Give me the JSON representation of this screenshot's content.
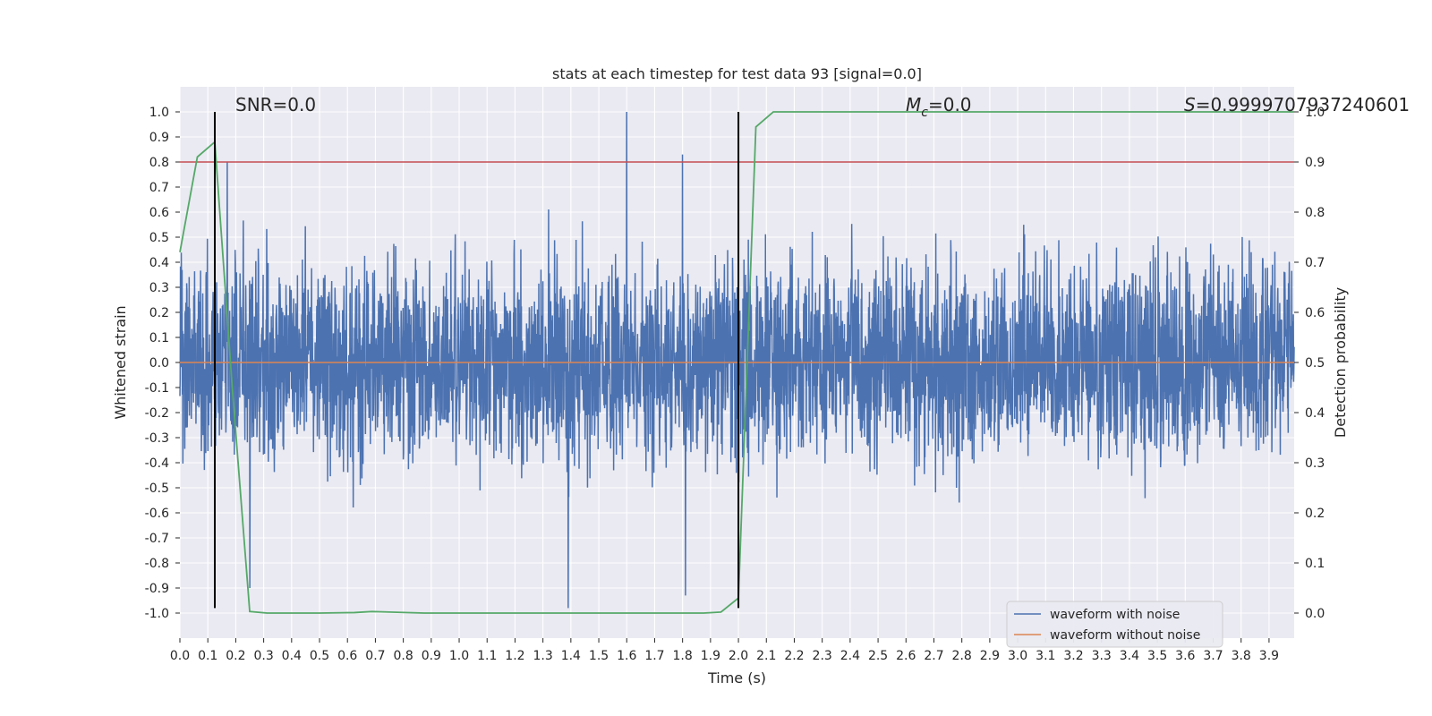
{
  "chart_data": {
    "type": "line",
    "title": "stats at each timestep for test data 93 [signal=0.0]",
    "xlabel": "Time (s)",
    "ylabel": "Whitened strain",
    "y2label": "Detection probability",
    "xlim": [
      0.0,
      3.99
    ],
    "ylim": [
      -1.1,
      1.1
    ],
    "y2lim": [
      -0.05,
      1.05
    ],
    "x_ticks": [
      0.0,
      0.1,
      0.2,
      0.3,
      0.4,
      0.5,
      0.6,
      0.7,
      0.8,
      0.9,
      1.0,
      1.1,
      1.2,
      1.3,
      1.4,
      1.5,
      1.6,
      1.7,
      1.8,
      1.9,
      2.0,
      2.1,
      2.2,
      2.3,
      2.4,
      2.5,
      2.6,
      2.7,
      2.8,
      2.9,
      3.0,
      3.1,
      3.2,
      3.3,
      3.4,
      3.5,
      3.6,
      3.7,
      3.8,
      3.9
    ],
    "y_ticks": [
      1.0,
      0.9,
      0.8,
      0.7,
      0.6,
      0.5,
      0.4,
      0.3,
      0.2,
      0.1,
      0.0,
      -0.1,
      -0.2,
      -0.3,
      -0.4,
      -0.5,
      -0.6,
      -0.7,
      -0.8,
      -0.9,
      -1.0
    ],
    "y2_ticks": [
      1.0,
      0.9,
      0.8,
      0.7,
      0.6,
      0.5,
      0.4,
      0.3,
      0.2,
      0.1,
      0.0
    ],
    "grid": true,
    "legend": {
      "location": "bottom-right",
      "entries": [
        {
          "label": "waveform with noise",
          "color": "#4c72b0"
        },
        {
          "label": "waveform without noise",
          "color": "#dd8452"
        }
      ]
    },
    "annotations": {
      "snr": "SNR=0.0",
      "mc_symbol": "M",
      "mc_sub": "c",
      "mc_value": "=0.0",
      "s_symbol": "S",
      "s_value": "=0.9999707937240601"
    },
    "colors": {
      "noise": "#4c72b0",
      "clean": "#dd8452",
      "probability": "#55a868",
      "threshold": "#c44e52",
      "marker": "#000000",
      "background": "#eaeaf2",
      "grid": "#ffffff"
    },
    "series": [
      {
        "name": "waveform with noise",
        "axis": "left",
        "description": "dense noise trace, approx. 4096 samples over 0-4 s, mostly within +/-0.45 with spikes",
        "peaks": [
          {
            "x": 1.6,
            "y": 1.0
          },
          {
            "x": 1.8,
            "y": 0.83
          },
          {
            "x": 0.17,
            "y": 0.8
          },
          {
            "x": 1.39,
            "y": -0.98
          },
          {
            "x": 0.25,
            "y": -0.9
          },
          {
            "x": 1.81,
            "y": -0.93
          }
        ]
      },
      {
        "name": "waveform without noise",
        "axis": "left",
        "x": [
          0.0,
          3.99
        ],
        "y": [
          0.0,
          0.0
        ]
      },
      {
        "name": "detection probability",
        "axis": "right",
        "x": [
          0.0,
          0.0625,
          0.125,
          0.1875,
          0.25,
          0.3125,
          0.375,
          0.5,
          0.625,
          0.6875,
          0.75,
          0.875,
          1.0,
          1.25,
          1.5,
          1.75,
          1.875,
          1.9375,
          2.0,
          2.0625,
          2.125,
          2.25,
          2.5,
          3.0,
          3.5,
          3.99
        ],
        "y": [
          0.72,
          0.91,
          0.94,
          0.45,
          0.003,
          0.0,
          0.0,
          0.0,
          0.001,
          0.003,
          0.002,
          0.0,
          0.0,
          0.0,
          0.0,
          0.0,
          0.0,
          0.002,
          0.03,
          0.97,
          1.0,
          1.0,
          1.0,
          1.0,
          1.0,
          1.0
        ]
      },
      {
        "name": "threshold",
        "axis": "right",
        "x": [
          0.0,
          3.99
        ],
        "y": [
          0.9,
          0.9
        ]
      }
    ],
    "vertical_markers": [
      0.125,
      2.0
    ]
  }
}
